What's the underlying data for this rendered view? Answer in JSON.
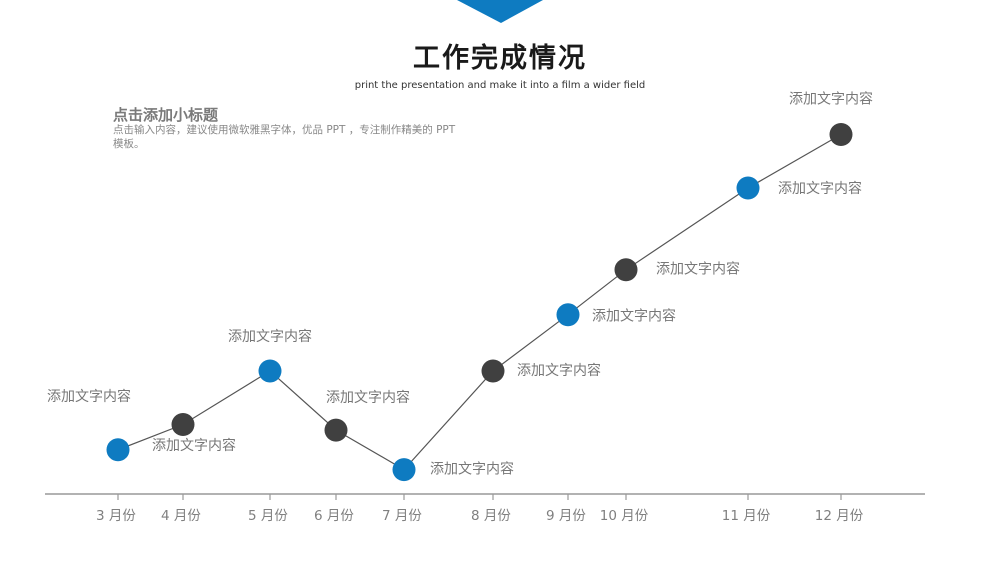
{
  "header": {
    "title": "工作完成情况",
    "subtitle": "print the presentation and make it into a film a wider field"
  },
  "intro": {
    "heading": "点击添加小标题",
    "description": "点击输入内容，建议使用微软雅黑字体，优品 PPT ，专注制作精美的 PPT 模板。"
  },
  "colors": {
    "accent": "#0e7bc1",
    "dark": "#404040",
    "axis": "#999999",
    "label": "#777777"
  },
  "chart_data": {
    "type": "line",
    "x_tick_labels": [
      "3 月份",
      "4 月份",
      "5 月份",
      "6 月份",
      "7 月份",
      "8 月份",
      "9 月份",
      "10 月份",
      "11 月份",
      "12 月份"
    ],
    "point_colors": [
      "accent",
      "dark",
      "accent",
      "dark",
      "accent",
      "dark",
      "accent",
      "dark",
      "accent",
      "dark"
    ],
    "values": [
      1.0,
      1.9,
      3.8,
      1.7,
      0.3,
      3.8,
      5.8,
      7.4,
      10.3,
      12.2
    ],
    "ylim": [
      0,
      13
    ],
    "point_labels": [
      "添加文字内容",
      "",
      "添加文字内容",
      "添加文字内容",
      "添加文字内容",
      "添加文字内容",
      "添加文字内容",
      "添加文字内容",
      "添加文字内容",
      "添加文字内容"
    ],
    "extra_labels": [
      "添加文字内容"
    ],
    "grid": false,
    "legend": "none"
  }
}
